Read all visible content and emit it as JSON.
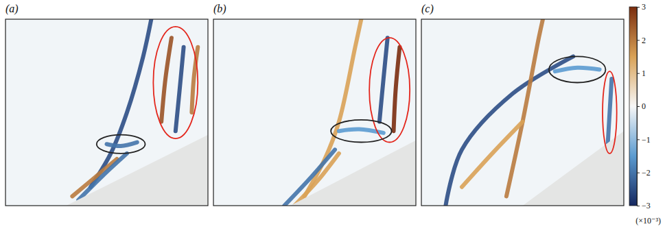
{
  "chart_data": {
    "type": "heatmap",
    "tick_labels": false,
    "xlim": [
      0,
      1
    ],
    "ylim": [
      0,
      1
    ],
    "panels": [
      {
        "label": "(a)",
        "body": {
          "x": [
            0.3,
            1.0,
            1.0
          ],
          "y": [
            0.0,
            0.38,
            0.0
          ]
        },
        "bands": [
          {
            "x": [
              0.42,
              0.52,
              0.6,
              0.68,
              0.72
            ],
            "y": [
              0.1,
              0.28,
              0.5,
              0.8,
              1.0
            ],
            "value": -2.5
          },
          {
            "x": [
              0.33,
              0.44,
              0.55
            ],
            "y": [
              0.05,
              0.15,
              0.25
            ],
            "value": 2
          },
          {
            "x": [
              0.36,
              0.48,
              0.6
            ],
            "y": [
              0.03,
              0.16,
              0.28
            ],
            "value": -2
          },
          {
            "x": [
              0.5,
              0.57,
              0.65
            ],
            "y": [
              0.33,
              0.32,
              0.34
            ],
            "value": -2
          },
          {
            "x": [
              0.77,
              0.79,
              0.82
            ],
            "y": [
              0.45,
              0.68,
              0.9
            ],
            "value": 2.5
          },
          {
            "x": [
              0.84,
              0.86,
              0.88
            ],
            "y": [
              0.4,
              0.62,
              0.85
            ],
            "value": -2.5
          },
          {
            "x": [
              0.92,
              0.93,
              0.95
            ],
            "y": [
              0.5,
              0.68,
              0.85
            ],
            "value": 2
          }
        ],
        "ellipses": [
          {
            "cx": 0.84,
            "cy": 0.66,
            "rx": 0.11,
            "ry": 0.3,
            "color": "#e3261c"
          },
          {
            "cx": 0.57,
            "cy": 0.33,
            "rx": 0.12,
            "ry": 0.05,
            "color": "#222222"
          }
        ]
      },
      {
        "label": "(b)",
        "body": {
          "x": [
            0.38,
            1.0,
            1.0
          ],
          "y": [
            0.0,
            0.35,
            0.0
          ]
        },
        "bands": [
          {
            "x": [
              0.45,
              0.55,
              0.62,
              0.7,
              0.73
            ],
            "y": [
              0.05,
              0.25,
              0.45,
              0.85,
              1.0
            ],
            "value": 1.5
          },
          {
            "x": [
              0.35,
              0.48,
              0.6
            ],
            "y": [
              0.0,
              0.15,
              0.3
            ],
            "value": -2
          },
          {
            "x": [
              0.4,
              0.52,
              0.62
            ],
            "y": [
              0.0,
              0.14,
              0.28
            ],
            "value": 1.5
          },
          {
            "x": [
              0.62,
              0.72,
              0.84
            ],
            "y": [
              0.4,
              0.41,
              0.39
            ],
            "value": -1.5
          },
          {
            "x": [
              0.82,
              0.84,
              0.86
            ],
            "y": [
              0.45,
              0.68,
              0.9
            ],
            "value": -2.5
          },
          {
            "x": [
              0.89,
              0.9,
              0.92
            ],
            "y": [
              0.4,
              0.62,
              0.85
            ],
            "value": 3
          }
        ],
        "ellipses": [
          {
            "cx": 0.87,
            "cy": 0.62,
            "rx": 0.1,
            "ry": 0.28,
            "color": "#e3261c"
          },
          {
            "cx": 0.73,
            "cy": 0.4,
            "rx": 0.15,
            "ry": 0.06,
            "color": "#222222"
          }
        ]
      },
      {
        "label": "(c)",
        "body": {
          "x": [
            0.5,
            1.0,
            1.0
          ],
          "y": [
            0.0,
            0.4,
            0.0
          ]
        },
        "bands": [
          {
            "x": [
              0.12,
              0.2,
              0.45,
              0.75
            ],
            "y": [
              0.0,
              0.3,
              0.6,
              0.8
            ],
            "value": -2.5
          },
          {
            "x": [
              0.42,
              0.5,
              0.58,
              0.6
            ],
            "y": [
              0.05,
              0.45,
              0.9,
              1.0
            ],
            "value": 2
          },
          {
            "x": [
              0.2,
              0.35,
              0.5
            ],
            "y": [
              0.1,
              0.28,
              0.45
            ],
            "value": 1.5
          },
          {
            "x": [
              0.66,
              0.77,
              0.88
            ],
            "y": [
              0.72,
              0.74,
              0.73
            ],
            "value": -1.5
          },
          {
            "x": [
              0.92,
              0.93,
              0.94
            ],
            "y": [
              0.32,
              0.5,
              0.68
            ],
            "value": -2
          }
        ],
        "ellipses": [
          {
            "cx": 0.93,
            "cy": 0.5,
            "rx": 0.035,
            "ry": 0.22,
            "color": "#e3261c"
          },
          {
            "cx": 0.77,
            "cy": 0.73,
            "rx": 0.14,
            "ry": 0.07,
            "color": "#222222"
          }
        ]
      }
    ],
    "colorbar": {
      "range": [
        -3,
        3
      ],
      "ticks": [
        {
          "value": -3,
          "label": "−3"
        },
        {
          "value": -2,
          "label": "−2"
        },
        {
          "value": -1,
          "label": "−1"
        },
        0,
        1,
        2,
        3
      ],
      "label": "(×10⁻³)"
    }
  }
}
